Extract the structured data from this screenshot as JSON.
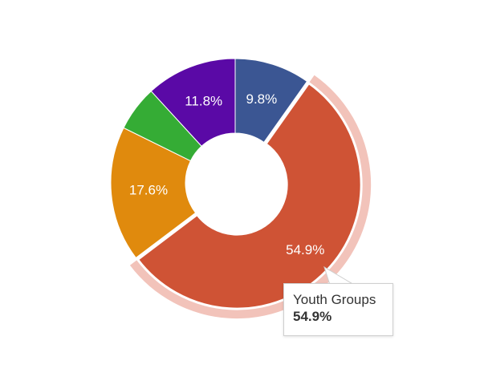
{
  "chart_data": {
    "type": "pie",
    "donut": true,
    "labels": [
      "",
      "Youth Groups",
      "",
      "",
      ""
    ],
    "values": [
      9.8,
      54.9,
      17.6,
      5.9,
      11.8
    ],
    "data_labels": [
      "9.8%",
      "54.9%",
      "17.6%",
      "",
      "11.8%"
    ],
    "colors": [
      "#3b5693",
      "#cf5335",
      "#e08a0d",
      "#35ac35",
      "#5a09a6"
    ],
    "highlighted_index": 1,
    "highlight_halo_color": "#f2c3ba",
    "title": "",
    "legend": "none"
  },
  "tooltip": {
    "name": "Youth Groups",
    "value": "54.9%"
  }
}
